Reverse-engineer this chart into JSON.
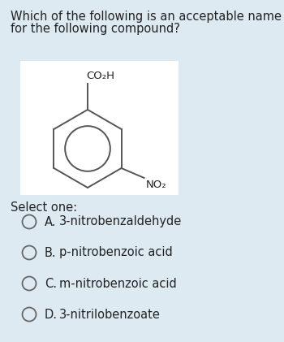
{
  "background_color": "#ddeaf2",
  "question_text_line1": "Which of the following is an acceptable name",
  "question_text_line2": "for the following compound?",
  "select_text": "Select one:",
  "options": [
    {
      "label": "A.",
      "text": "3-nitrobenzaldehyde"
    },
    {
      "label": "B.",
      "text": "p-nitrobenzoic acid"
    },
    {
      "label": "C.",
      "text": "m-nitrobenzoic acid"
    },
    {
      "label": "D.",
      "text": "3-nitrilobenzoate"
    }
  ],
  "molecule_box_color": "#ffffff",
  "co2h_label": "CO₂H",
  "no2_label": "NO₂",
  "font_size_question": 10.5,
  "font_size_options": 10.5,
  "font_size_select": 10.5,
  "font_size_mol_labels": 9.5,
  "text_color": "#222222",
  "ring_color": "#555555"
}
